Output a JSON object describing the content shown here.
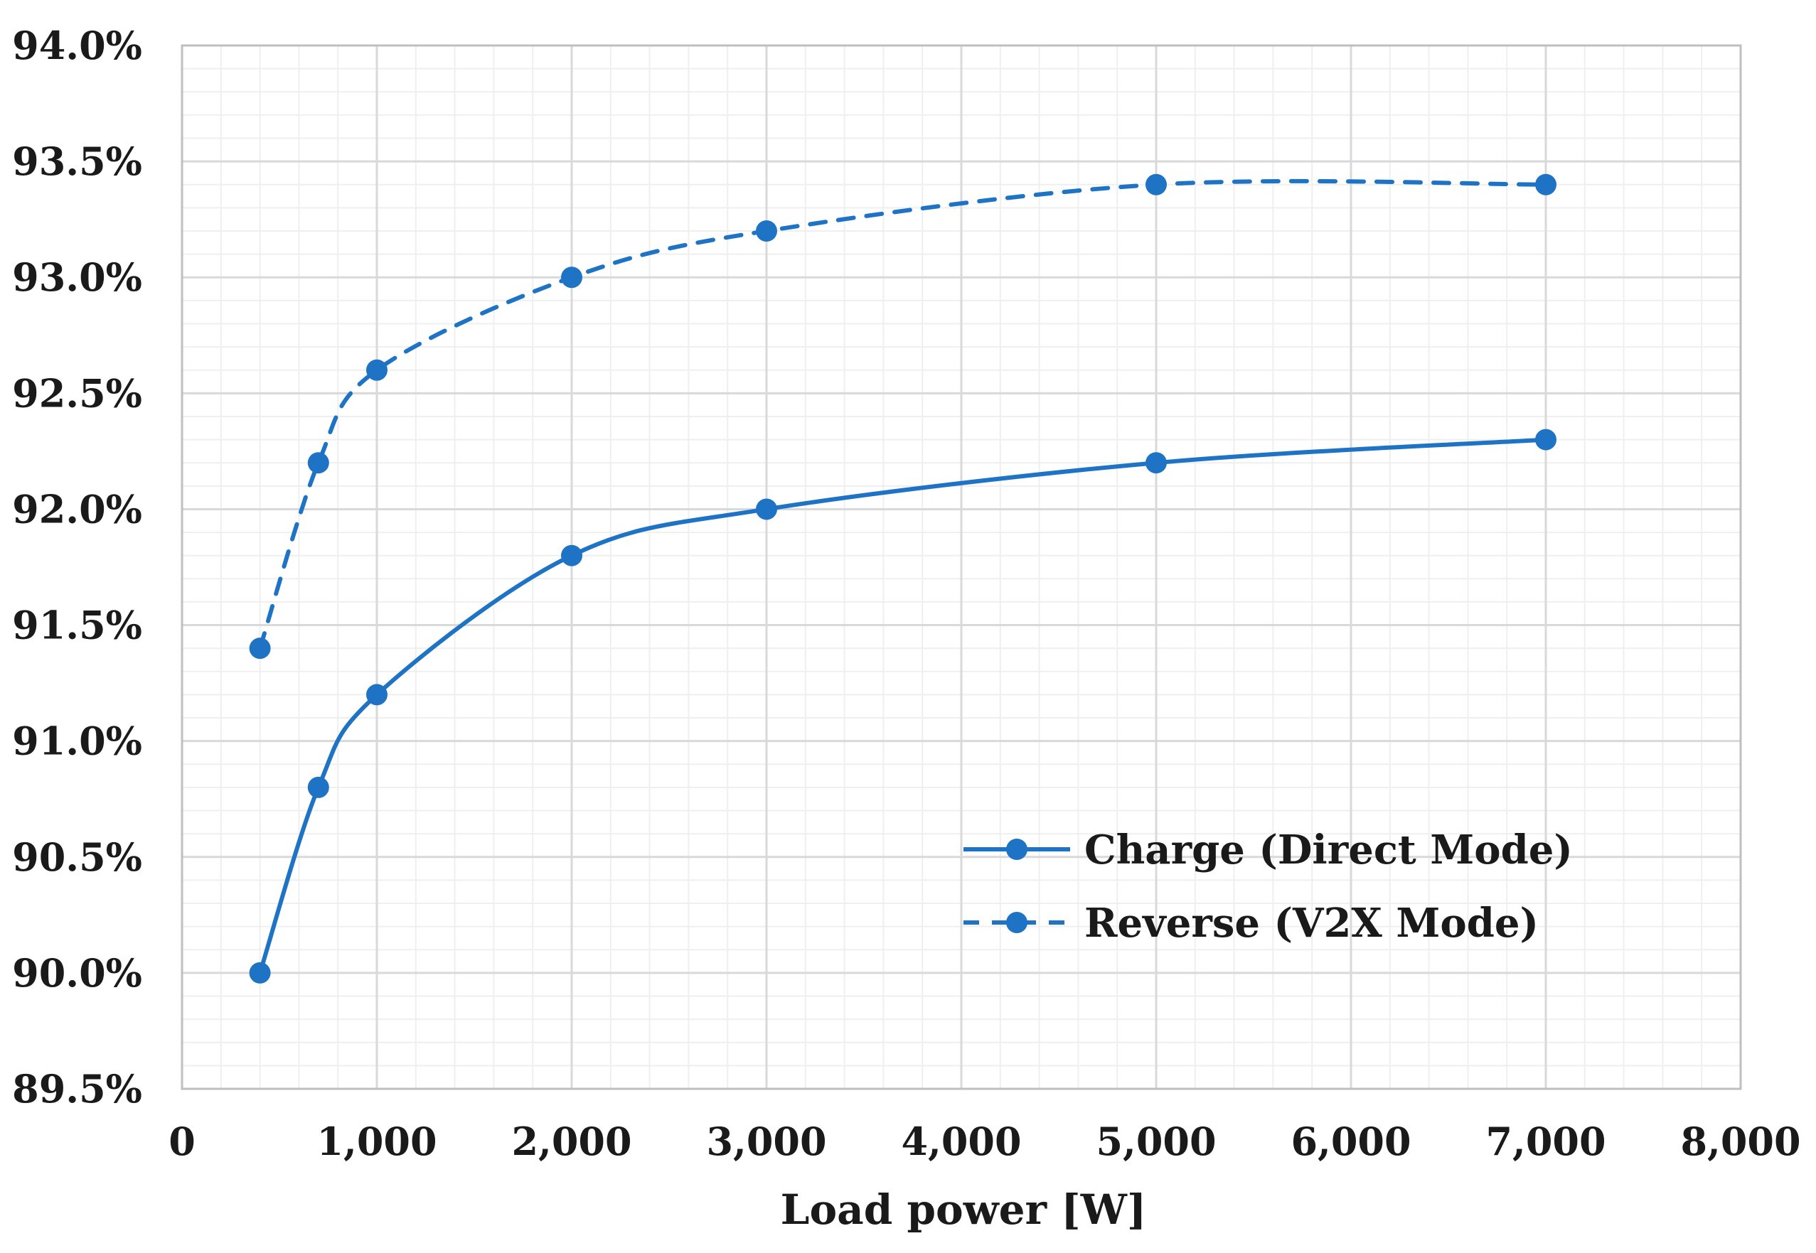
{
  "chart_data": {
    "type": "line",
    "title": "",
    "xlabel": "Load power [W]",
    "ylabel": "",
    "xlim": [
      0,
      8000
    ],
    "ylim": [
      89.5,
      94.0
    ],
    "x_ticks": [
      0,
      1000,
      2000,
      3000,
      4000,
      5000,
      6000,
      7000,
      8000
    ],
    "x_tick_labels": [
      "0",
      "1,000",
      "2,000",
      "3,000",
      "4,000",
      "5,000",
      "6,000",
      "7,000",
      "8,000"
    ],
    "y_ticks": [
      89.5,
      90.0,
      90.5,
      91.0,
      91.5,
      92.0,
      92.5,
      93.0,
      93.5,
      94.0
    ],
    "y_tick_labels": [
      "89.5%",
      "90.0%",
      "90.5%",
      "91.0%",
      "91.5%",
      "92.0%",
      "92.5%",
      "93.0%",
      "93.5%",
      "94.0%"
    ],
    "grid": true,
    "legend_position": "lower-right",
    "series": [
      {
        "name": "Charge (Direct Mode)",
        "style": "solid",
        "color": "#1f73c4",
        "x": [
          400,
          700,
          1000,
          2000,
          3000,
          5000,
          7000
        ],
        "values": [
          90.0,
          90.8,
          91.2,
          91.8,
          92.0,
          92.2,
          92.3
        ]
      },
      {
        "name": "Reverse (V2X Mode)",
        "style": "dashed",
        "color": "#1f73c4",
        "x": [
          400,
          700,
          1000,
          2000,
          3000,
          5000,
          7000
        ],
        "values": [
          91.4,
          92.2,
          92.6,
          93.0,
          93.2,
          93.4,
          93.4
        ]
      }
    ]
  },
  "colors": {
    "series": "#1f73c4",
    "grid_major": "#d9d9d9",
    "grid_minor": "#efefef",
    "text": "#1a1a1a"
  }
}
